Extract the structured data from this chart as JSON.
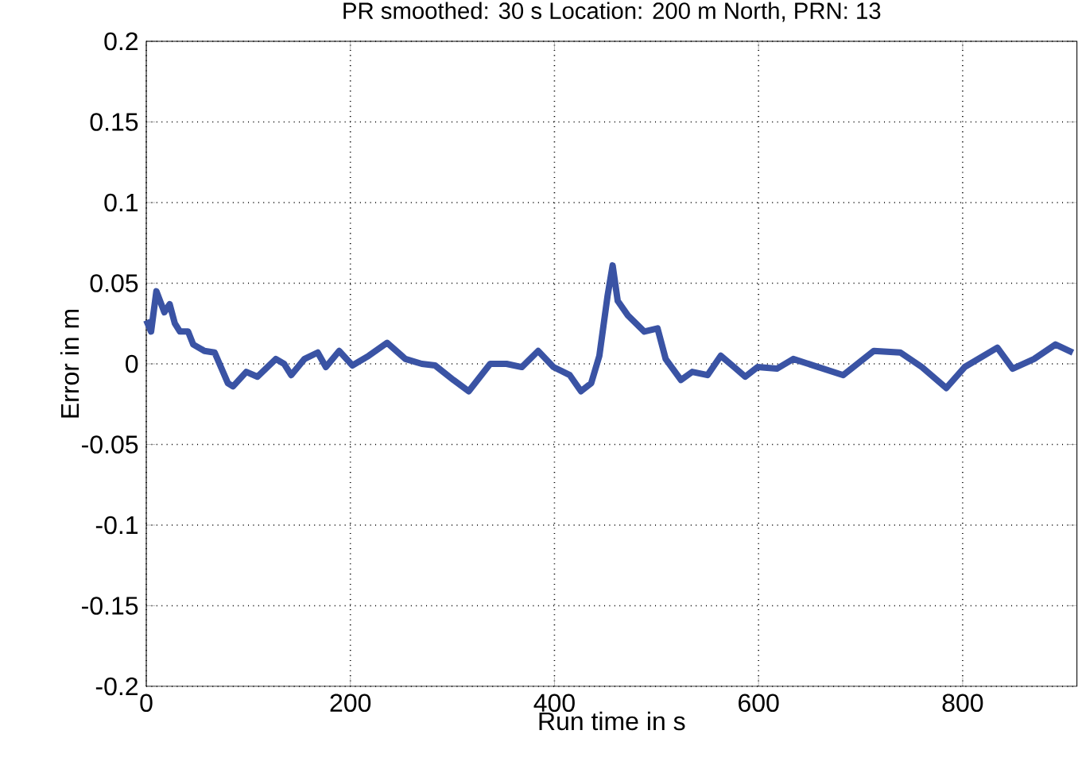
{
  "chart_data": {
    "type": "line",
    "title": "PR smoothed: 30 s Location: 200 m North, PRN: 13",
    "xlabel": "Run time in s",
    "ylabel": "Error in m",
    "xlim": [
      0,
      912
    ],
    "xticks": [
      0,
      200,
      400,
      600,
      800
    ],
    "ylim": [
      -0.2,
      0.2
    ],
    "yticks": [
      -0.2,
      -0.15,
      -0.1,
      -0.05,
      0,
      0.05,
      0.1,
      0.15,
      0.2
    ],
    "grid": true,
    "series": [
      {
        "color": "#3a53a4",
        "x": [
          0,
          4.7,
          9.9,
          17.7,
          22.9,
          28,
          33,
          41,
          46,
          57,
          67,
          80,
          85,
          98,
          109,
          127,
          135,
          142,
          155,
          168,
          176,
          189,
          202,
          218,
          236,
          254,
          270,
          283,
          301,
          316,
          337,
          353,
          368,
          384,
          399,
          415,
          426,
          436,
          444,
          452,
          457,
          462,
          472,
          488,
          501,
          509,
          524,
          535,
          550,
          563,
          576,
          587,
          599,
          618,
          634,
          683,
          713,
          739,
          760,
          784,
          802,
          834,
          849,
          870,
          891,
          908
        ],
        "values": [
          0.027,
          0.02,
          0.045,
          0.032,
          0.037,
          0.025,
          0.02,
          0.02,
          0.012,
          0.008,
          0.007,
          -0.012,
          -0.014,
          -0.005,
          -0.008,
          0.003,
          0,
          -0.007,
          0.003,
          0.007,
          -0.002,
          0.008,
          -0.001,
          0.005,
          0.013,
          0.003,
          0,
          -0.001,
          -0.01,
          -0.017,
          0,
          0,
          -0.002,
          0.008,
          -0.002,
          -0.007,
          -0.017,
          -0.012,
          0.005,
          0.042,
          0.061,
          0.039,
          0.03,
          0.02,
          0.022,
          0.003,
          -0.01,
          -0.005,
          -0.007,
          0.005,
          -0.002,
          -0.008,
          -0.002,
          -0.003,
          0.003,
          -0.007,
          0.008,
          0.007,
          -0.002,
          -0.015,
          -0.002,
          0.01,
          -0.003,
          0.003,
          0.012,
          0.007
        ]
      }
    ]
  }
}
